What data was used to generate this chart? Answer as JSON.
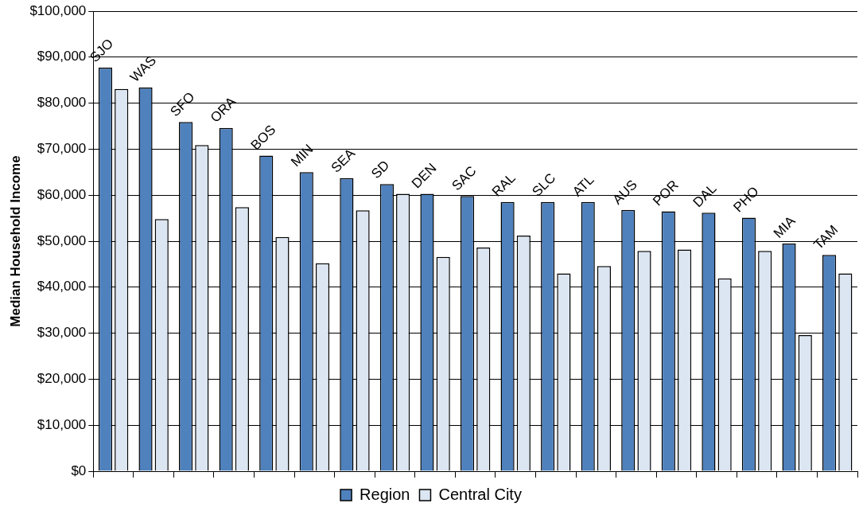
{
  "chart_data": {
    "type": "bar",
    "ylabel": "Median Household Income",
    "categories": [
      "SJO",
      "WAS",
      "SFO",
      "ORA",
      "BOS",
      "MIN",
      "SEA",
      "SD",
      "DEN",
      "SAC",
      "RAL",
      "SLC",
      "ATL",
      "AUS",
      "POR",
      "DAL",
      "PHO",
      "MIA",
      "TAM"
    ],
    "series": [
      {
        "name": "Region",
        "color": "#4f81bd",
        "values": [
          87700,
          83400,
          75900,
          74600,
          68600,
          65000,
          63700,
          62400,
          60300,
          59800,
          58500,
          58500,
          58500,
          56800,
          56500,
          56200,
          55100,
          49500,
          47000
        ]
      },
      {
        "name": "Central City",
        "color": "#dce6f2",
        "values": [
          83100,
          54800,
          70900,
          57400,
          50900,
          45200,
          56700,
          60300,
          46600,
          48600,
          51200,
          43000,
          44600,
          47900,
          48200,
          41900,
          47900,
          29600,
          43000
        ]
      }
    ],
    "ylim": [
      0,
      100000
    ],
    "yticks": [
      {
        "value": 0,
        "label": "$0"
      },
      {
        "value": 10000,
        "label": "$10,000"
      },
      {
        "value": 20000,
        "label": "$20,000"
      },
      {
        "value": 30000,
        "label": "$30,000"
      },
      {
        "value": 40000,
        "label": "$40,000"
      },
      {
        "value": 50000,
        "label": "$50,000"
      },
      {
        "value": 60000,
        "label": "$60,000"
      },
      {
        "value": 70000,
        "label": "$70,000"
      },
      {
        "value": 80000,
        "label": "$80,000"
      },
      {
        "value": 90000,
        "label": "$90,000"
      },
      {
        "value": 100000,
        "label": "$100,000"
      }
    ],
    "grid": "y",
    "legend": "bottom"
  }
}
